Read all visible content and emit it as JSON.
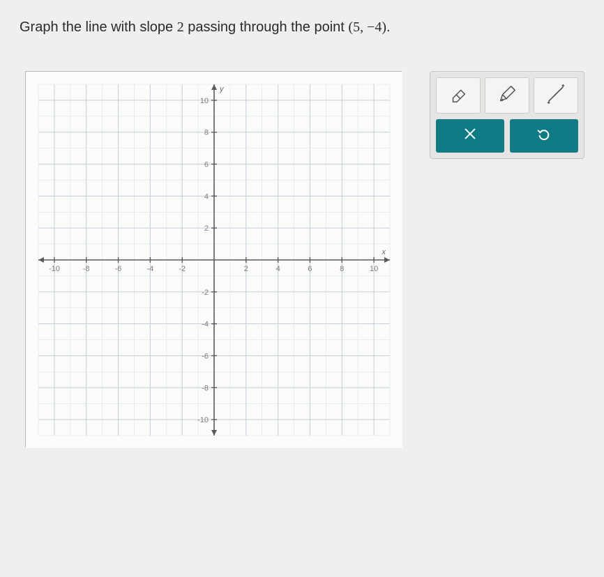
{
  "question": {
    "prefix": "Graph the line with slope ",
    "slope": "2",
    "mid": " passing through the point ",
    "point": "(5, −4)",
    "suffix": "."
  },
  "graph": {
    "type": "cartesian-grid",
    "xlim": [
      -11,
      11
    ],
    "ylim": [
      -11,
      11
    ],
    "tick_step": 2,
    "x_ticks": [
      "-10",
      "-8",
      "-6",
      "-4",
      "-2",
      "2",
      "4",
      "6",
      "8",
      "10"
    ],
    "y_ticks_pos": [
      "2",
      "4",
      "6",
      "8",
      "10"
    ],
    "y_ticks_neg": [
      "-2",
      "-4",
      "-6",
      "-8",
      "-10"
    ],
    "x_axis_label": "x",
    "y_axis_label": "y",
    "grid_minor_color": "#d9e3ec",
    "grid_major_color": "#c2cdd7",
    "axis_color": "#5a5a5a",
    "background_color": "#fbfbfa"
  },
  "toolbox": {
    "tools": [
      {
        "name": "eraser",
        "label": "eraser-icon"
      },
      {
        "name": "pencil",
        "label": "pencil-icon"
      },
      {
        "name": "line",
        "label": "line-icon"
      }
    ],
    "actions": {
      "clear": {
        "label": "×",
        "bg": "#0e7a84"
      },
      "undo": {
        "label": "undo",
        "bg": "#0e7a84"
      }
    },
    "tool_bg": "#f6f4f2",
    "panel_bg": "#e7e5e3"
  }
}
